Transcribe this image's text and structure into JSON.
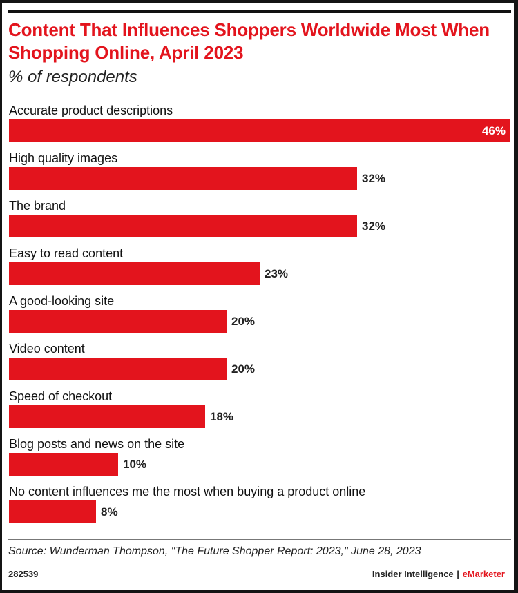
{
  "chart_data": {
    "type": "bar",
    "orientation": "horizontal",
    "title": "Content That Influences Shoppers Worldwide Most When Shopping Online, April 2023",
    "subtitle": "% of respondents",
    "categories": [
      "Accurate product descriptions",
      "High quality images",
      "The brand",
      "Easy to read content",
      "A good-looking site",
      "Video content",
      "Speed of checkout",
      "Blog posts and news on the site",
      "No content influences me the most when buying a product online"
    ],
    "values": [
      46,
      32,
      32,
      23,
      20,
      20,
      18,
      10,
      8
    ],
    "value_labels": [
      "46%",
      "32%",
      "32%",
      "23%",
      "20%",
      "20%",
      "18%",
      "10%",
      "8%"
    ],
    "xlim": [
      0,
      46
    ],
    "grid": false,
    "bar_color": "#e3141d",
    "value_label_inside_first": true
  },
  "footer": {
    "source": "Source: Wunderman Thompson, \"The Future Shopper Report: 2023,\" June 28, 2023",
    "chart_id": "282539",
    "brand_left": "Insider Intelligence",
    "brand_sep": "|",
    "brand_right": "eMarketer"
  },
  "colors": {
    "accent": "#e3141d",
    "text": "#111111",
    "background": "#ffffff"
  }
}
